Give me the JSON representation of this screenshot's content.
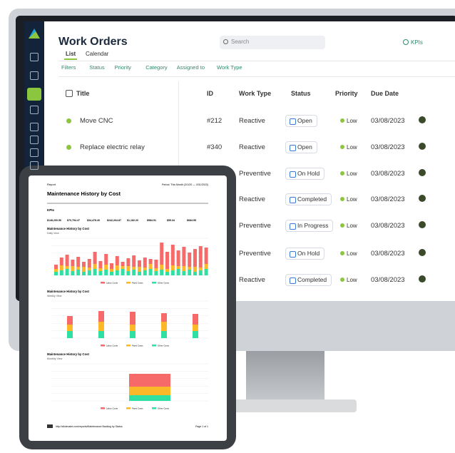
{
  "app": {
    "title": "Work Orders",
    "tabs": [
      "List",
      "Calendar"
    ],
    "search_placeholder": "Search",
    "kpis_button": "KPIs",
    "filters": [
      "Filters",
      "Status",
      "Priority",
      "Category",
      "Assigned to",
      "Work Type"
    ]
  },
  "table": {
    "columns": [
      "Title",
      "ID",
      "Work Type",
      "Status",
      "Priority",
      "Due Date"
    ],
    "rows": [
      {
        "title": "Move CNC",
        "id": "#212",
        "work_type": "Reactive",
        "status": "Open",
        "priority": "Low",
        "due_date": "03/08/2023"
      },
      {
        "title": "Replace electric relay",
        "id": "#340",
        "work_type": "Reactive",
        "status": "Open",
        "priority": "Low",
        "due_date": "03/08/2023"
      },
      {
        "work_type": "Preventive",
        "status": "On Hold",
        "priority": "Low",
        "due_date": "03/08/2023"
      },
      {
        "work_type": "Reactive",
        "status": "Completed",
        "priority": "Low",
        "due_date": "03/08/2023"
      },
      {
        "work_type": "Preventive",
        "status": "In Progress",
        "priority": "Low",
        "due_date": "03/08/2023"
      },
      {
        "work_type": "Preventive",
        "status": "On Hold",
        "priority": "Low",
        "due_date": "03/08/2023"
      },
      {
        "work_type": "Reactive",
        "status": "Completed",
        "priority": "Low",
        "due_date": "03/08/2023"
      }
    ]
  },
  "report": {
    "label": "Report",
    "period": "Period: This Month (3/1/20 — 3/31/2023)",
    "title": "Maintenance History by Cost",
    "kpis_heading": "KPIs",
    "kpis": [
      "$148,200.56",
      "$70,794.47",
      "$34,478.40",
      "$242,264.87",
      "$1,182.20",
      "$584.51",
      "$55.34",
      "$684.55"
    ],
    "sections": [
      {
        "title": "Maintenance History by Cost",
        "subtitle": "Daily View"
      },
      {
        "title": "Maintenance History by Cost",
        "subtitle": "Weekly View"
      },
      {
        "title": "Maintenance History by Cost",
        "subtitle": "Monthly View"
      }
    ],
    "legend": [
      "Labor Costs",
      "Parts Costs",
      "Other Costs"
    ],
    "footer_url": "http://clickmaint.com/reports/Maintenance Backlog by Status",
    "footer_page": "Page 1 of 1"
  }
}
